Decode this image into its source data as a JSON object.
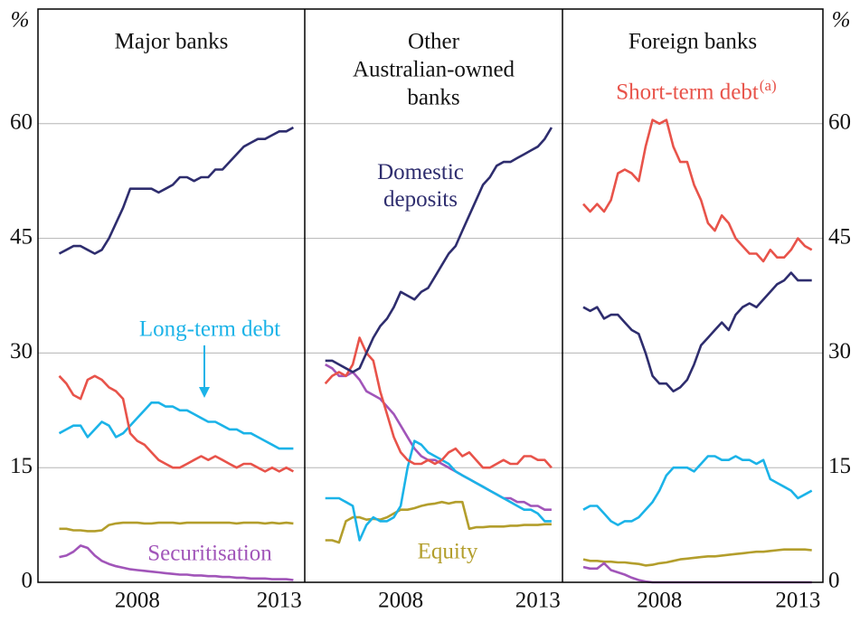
{
  "chart_data": {
    "type": "line",
    "y_unit": "%",
    "ylim": [
      0,
      75
    ],
    "yticks": [
      0,
      15,
      30,
      45,
      60
    ],
    "xlim": [
      2004.5,
      2013.9
    ],
    "xticks": [
      2008,
      2013
    ],
    "grid": true,
    "x": [
      2005.25,
      2005.5,
      2005.75,
      2006,
      2006.25,
      2006.5,
      2006.75,
      2007,
      2007.25,
      2007.5,
      2007.75,
      2008,
      2008.25,
      2008.5,
      2008.75,
      2009,
      2009.25,
      2009.5,
      2009.75,
      2010,
      2010.25,
      2010.5,
      2010.75,
      2011,
      2011.25,
      2011.5,
      2011.75,
      2012,
      2012.25,
      2012.5,
      2012.75,
      2013,
      2013.25,
      2013.5
    ],
    "series": [
      {
        "name": "Domestic deposits",
        "color": "#2e2d6e"
      },
      {
        "name": "Short-term debt",
        "name_note": "(a)",
        "color": "#e8534a"
      },
      {
        "name": "Long-term debt",
        "color": "#1bb3e8"
      },
      {
        "name": "Equity",
        "color": "#b39e2c"
      },
      {
        "name": "Securitisation",
        "color": "#a155b9"
      }
    ],
    "panels": [
      {
        "title": [
          "Major banks"
        ],
        "series_values": [
          [
            43,
            43.5,
            44,
            44,
            43.5,
            43,
            43.5,
            45,
            47,
            49,
            51.5,
            51.5,
            51.5,
            51.5,
            51,
            51.5,
            52,
            53,
            53,
            52.5,
            53,
            53,
            54,
            54,
            55,
            56,
            57,
            57.5,
            58,
            58,
            58.5,
            59,
            59,
            59.5
          ],
          [
            27,
            26,
            24.5,
            24,
            26.5,
            27,
            26.5,
            25.5,
            25,
            24,
            19.5,
            18.5,
            18,
            17,
            16,
            15.5,
            15,
            15,
            15.5,
            16,
            16.5,
            16,
            16.5,
            16,
            15.5,
            15,
            15.5,
            15.5,
            15,
            14.5,
            15,
            14.5,
            15,
            14.5
          ],
          [
            19.5,
            20,
            20.5,
            20.5,
            19,
            20,
            21,
            20.5,
            19,
            19.5,
            20.5,
            21.5,
            22.5,
            23.5,
            23.5,
            23,
            23,
            22.5,
            22.5,
            22,
            21.5,
            21,
            21,
            20.5,
            20,
            20,
            19.5,
            19.5,
            19,
            18.5,
            18,
            17.5,
            17.5,
            17.5
          ],
          [
            7,
            7,
            6.8,
            6.8,
            6.7,
            6.7,
            6.8,
            7.5,
            7.7,
            7.8,
            7.8,
            7.8,
            7.7,
            7.7,
            7.8,
            7.8,
            7.8,
            7.7,
            7.8,
            7.8,
            7.8,
            7.8,
            7.8,
            7.8,
            7.8,
            7.7,
            7.8,
            7.8,
            7.8,
            7.7,
            7.8,
            7.7,
            7.8,
            7.7
          ],
          [
            3.3,
            3.5,
            4,
            4.8,
            4.5,
            3.5,
            2.8,
            2.4,
            2.1,
            1.9,
            1.7,
            1.6,
            1.5,
            1.4,
            1.3,
            1.2,
            1.1,
            1.0,
            1.0,
            0.9,
            0.9,
            0.8,
            0.8,
            0.7,
            0.7,
            0.6,
            0.6,
            0.5,
            0.5,
            0.5,
            0.4,
            0.4,
            0.4,
            0.3
          ]
        ]
      },
      {
        "title": [
          "Other",
          "Australian-owned",
          "banks"
        ],
        "series_values": [
          [
            29,
            29,
            28.5,
            28,
            27.5,
            28,
            30,
            32,
            33.5,
            34.5,
            36,
            38,
            37.5,
            37,
            38,
            38.5,
            40,
            41.5,
            43,
            44,
            46,
            48,
            50,
            52,
            53,
            54.5,
            55,
            55,
            55.5,
            56,
            56.5,
            57,
            58,
            59.5
          ],
          [
            26,
            27,
            27.5,
            27,
            28.5,
            32,
            30,
            29,
            25,
            22,
            19,
            17,
            16,
            15.5,
            15.5,
            16,
            15.5,
            16,
            17,
            17.5,
            16.5,
            17,
            16,
            15,
            15,
            15.5,
            16,
            15.5,
            15.5,
            16.5,
            16.5,
            16,
            16,
            15
          ],
          [
            11,
            11,
            11,
            10.5,
            10,
            5.5,
            7.5,
            8.5,
            8,
            8,
            8.5,
            10,
            15,
            18.5,
            18,
            17,
            16.5,
            16,
            15.5,
            14.5,
            14,
            13.5,
            13,
            12.5,
            12,
            11.5,
            11,
            10.5,
            10,
            9.5,
            9.5,
            9,
            8,
            8
          ],
          [
            5.5,
            5.5,
            5.2,
            8,
            8.5,
            8.5,
            8.2,
            8.3,
            8.2,
            8.5,
            9,
            9.5,
            9.5,
            9.7,
            10,
            10.2,
            10.3,
            10.5,
            10.3,
            10.5,
            10.5,
            7,
            7.2,
            7.2,
            7.3,
            7.3,
            7.3,
            7.4,
            7.4,
            7.5,
            7.5,
            7.5,
            7.6,
            7.6
          ],
          [
            28.5,
            28,
            27,
            27,
            27.5,
            26.5,
            25,
            24.5,
            24,
            23,
            22,
            20.5,
            19,
            17.5,
            16.5,
            16,
            16,
            15.5,
            15,
            14.5,
            14,
            13.5,
            13,
            12.5,
            12,
            11.5,
            11,
            11,
            10.5,
            10.5,
            10,
            10,
            9.5,
            9.5
          ]
        ]
      },
      {
        "title": [
          "Foreign banks"
        ],
        "series_values": [
          [
            36,
            35.5,
            36,
            34.5,
            35,
            35,
            34,
            33,
            32.5,
            30,
            27,
            26,
            26,
            25,
            25.5,
            26.5,
            28.5,
            31,
            32,
            33,
            34,
            33,
            35,
            36,
            36.5,
            36,
            37,
            38,
            39,
            39.5,
            40.5,
            39.5,
            39.5,
            39.5
          ],
          [
            49.5,
            48.5,
            49.5,
            48.5,
            50,
            53.5,
            54,
            53.5,
            52.5,
            57,
            60.5,
            60,
            60.5,
            57,
            55,
            55,
            52,
            50,
            47,
            46,
            48,
            47,
            45,
            44,
            43,
            43,
            42,
            43.5,
            42.5,
            42.5,
            43.5,
            45,
            44,
            43.5
          ],
          [
            9.5,
            10,
            10,
            9,
            8,
            7.5,
            8,
            8,
            8.5,
            9.5,
            10.5,
            12,
            14,
            15,
            15,
            15,
            14.5,
            15.5,
            16.5,
            16.5,
            16,
            16,
            16.5,
            16,
            16,
            15.5,
            16,
            13.5,
            13,
            12.5,
            12,
            11,
            11.5,
            12
          ],
          [
            3,
            2.8,
            2.8,
            2.7,
            2.7,
            2.6,
            2.6,
            2.5,
            2.4,
            2.2,
            2.3,
            2.5,
            2.6,
            2.8,
            3.0,
            3.1,
            3.2,
            3.3,
            3.4,
            3.4,
            3.5,
            3.6,
            3.7,
            3.8,
            3.9,
            4.0,
            4.0,
            4.1,
            4.2,
            4.3,
            4.3,
            4.3,
            4.3,
            4.2
          ],
          [
            2,
            1.8,
            1.8,
            2.5,
            1.6,
            1.3,
            1,
            0.6,
            0.3,
            0.1,
            0,
            0,
            0,
            0,
            0,
            0,
            0,
            0,
            0,
            0,
            0,
            0,
            0,
            0,
            0,
            0,
            0,
            0,
            0,
            0,
            0,
            0,
            0,
            0
          ]
        ]
      }
    ]
  }
}
